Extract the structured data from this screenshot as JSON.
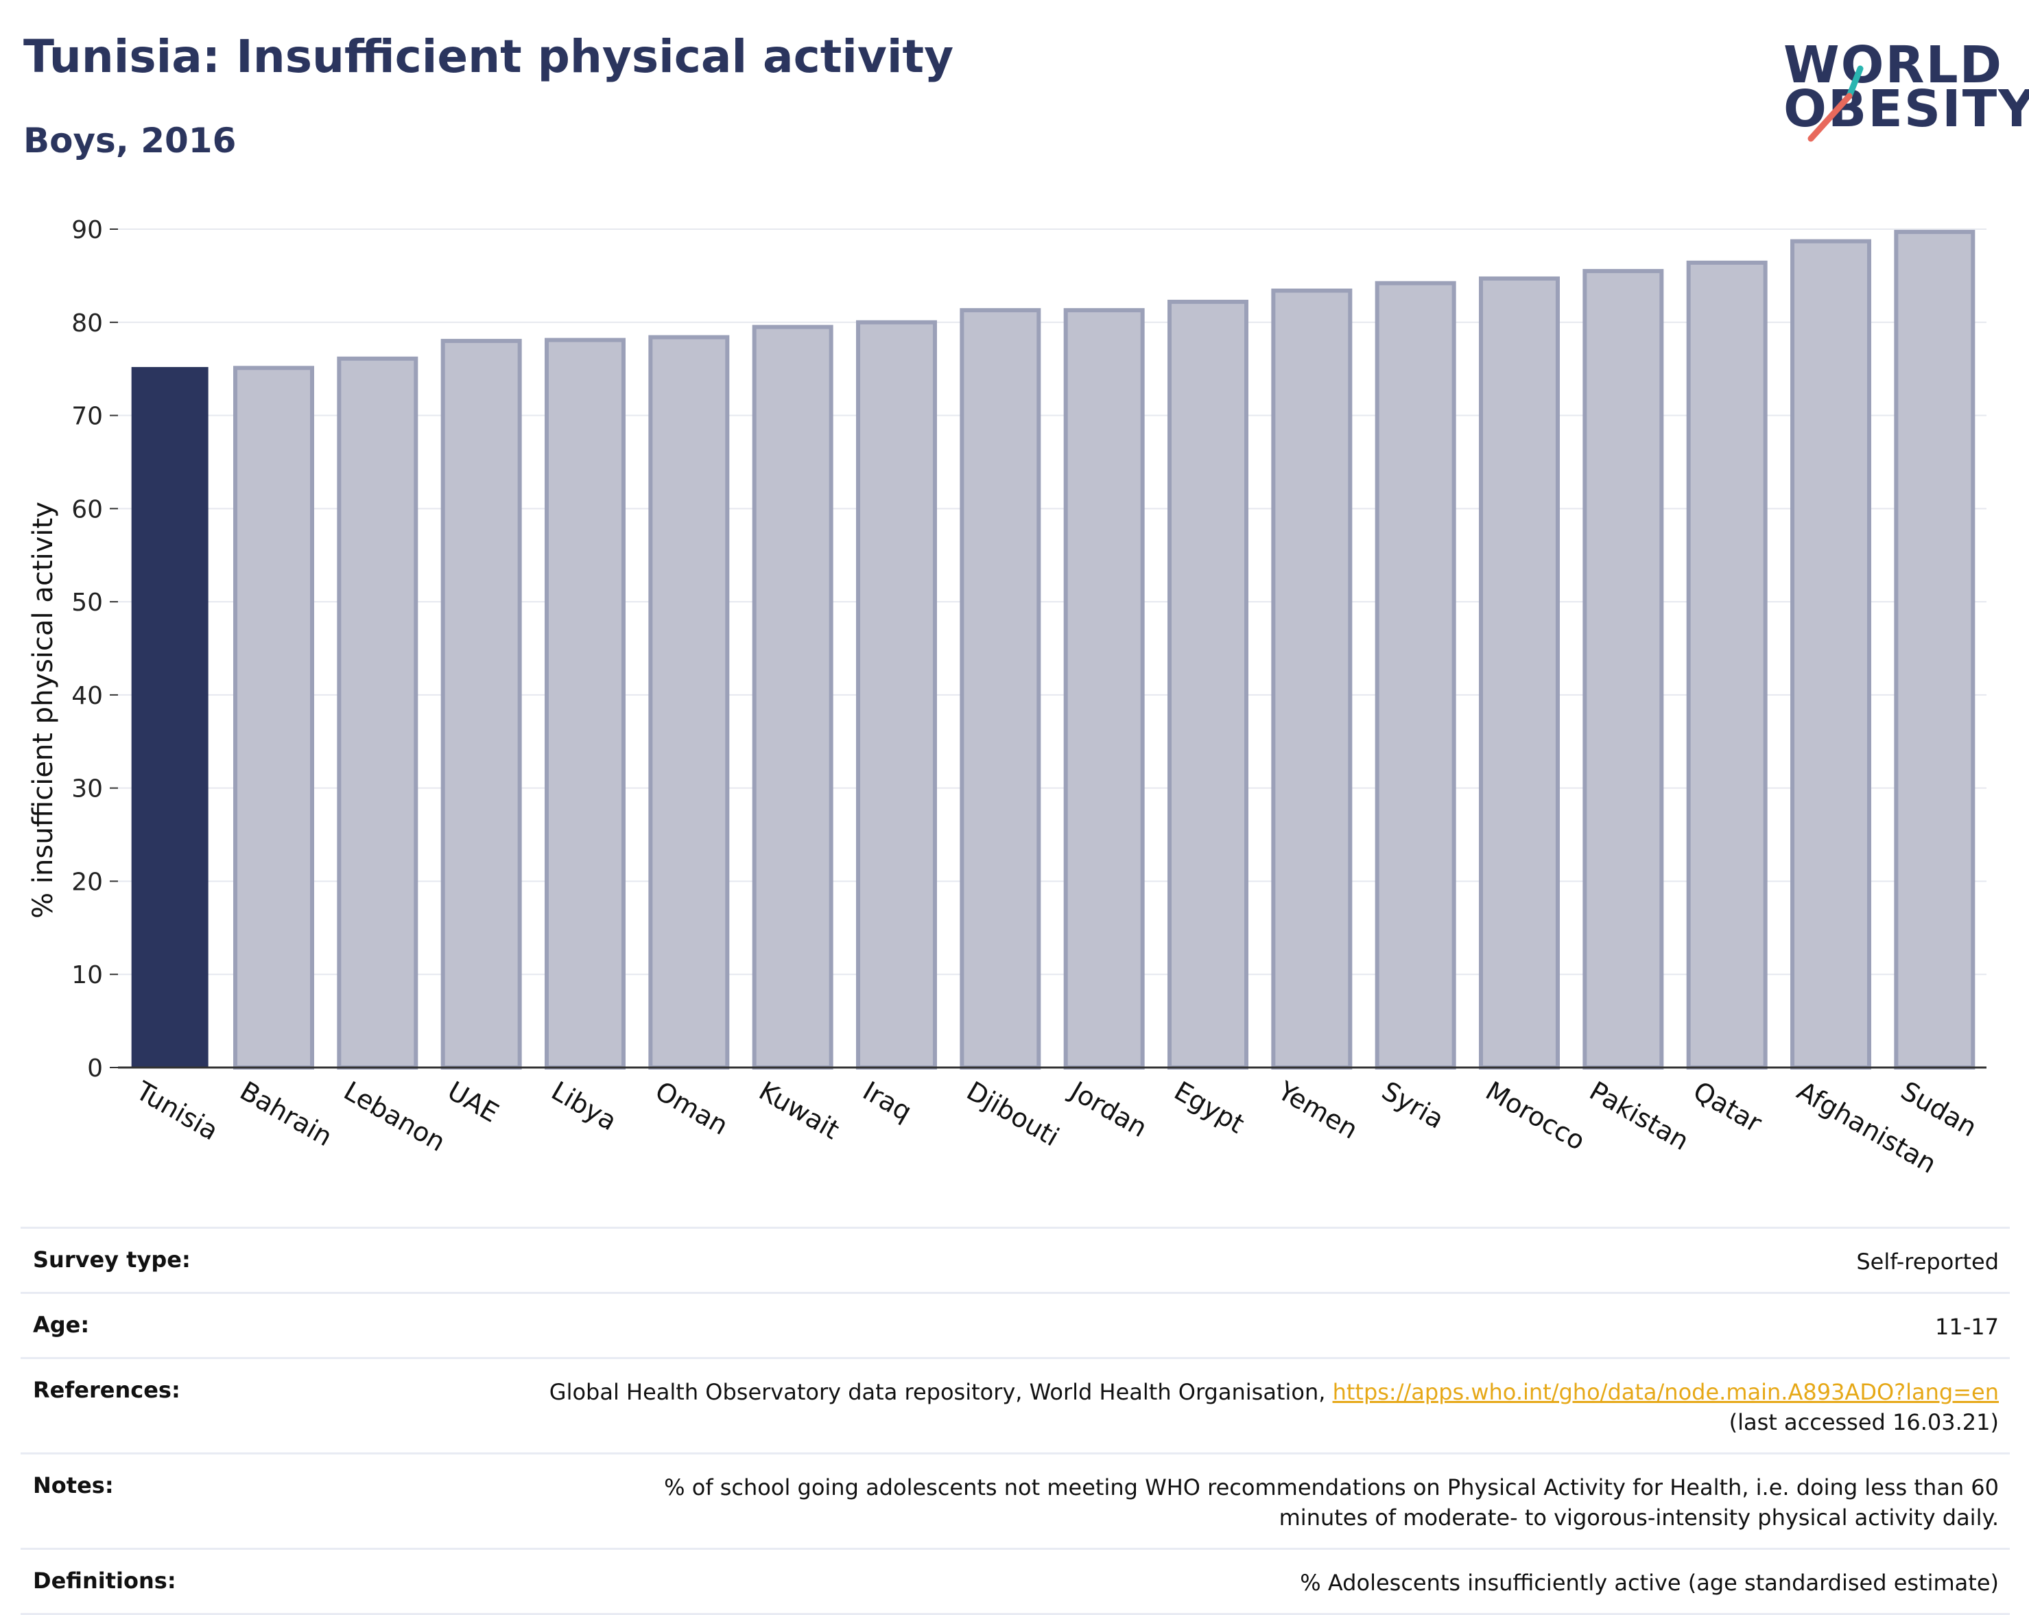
{
  "header": {
    "title": "Tunisia: Insufficient physical activity",
    "subtitle": "Boys, 2016"
  },
  "logo": {
    "line1": "WORLD",
    "line2": "OBESITY"
  },
  "colors": {
    "highlight_bar": "#2b355e",
    "other_bar_fill": "#bfc1cf",
    "other_bar_stroke": "#9ba0b8",
    "logo_slash_teal": "#2ab5b0",
    "logo_slash_coral": "#e8695c",
    "link": "#e6a817"
  },
  "chart_data": {
    "type": "bar",
    "title": "",
    "xlabel": "",
    "ylabel": "% insufficient physical activity",
    "ylim": [
      0,
      90
    ],
    "yticks": [
      0,
      10,
      20,
      30,
      40,
      50,
      60,
      70,
      80,
      90
    ],
    "grid": true,
    "highlight": "Tunisia",
    "categories": [
      "Tunisia",
      "Bahrain",
      "Lebanon",
      "UAE",
      "Libya",
      "Oman",
      "Kuwait",
      "Iraq",
      "Djibouti",
      "Jordan",
      "Egypt",
      "Yemen",
      "Syria",
      "Morocco",
      "Pakistan",
      "Qatar",
      "Afghanistan",
      "Sudan"
    ],
    "values": [
      75.2,
      75.1,
      76.1,
      78.0,
      78.1,
      78.4,
      79.5,
      80.0,
      81.3,
      81.3,
      82.2,
      83.4,
      84.2,
      84.7,
      85.5,
      86.4,
      88.7,
      89.7
    ]
  },
  "info_table": [
    {
      "key": "Survey type:",
      "value": "Self-reported"
    },
    {
      "key": "Age:",
      "value": "11-17"
    },
    {
      "key": "References:",
      "value_prefix": "Global Health Observatory data repository, World Health Organisation, ",
      "link": "https://apps.who.int/gho/data/node.main.A893ADO?lang=en",
      "value_suffix": "(last accessed 16.03.21)"
    },
    {
      "key": "Notes:",
      "value": "% of school going adolescents not meeting WHO recommendations on Physical Activity for Health, i.e. doing less than 60 minutes of moderate- to vigorous-intensity physical activity daily."
    },
    {
      "key": "Definitions:",
      "value": "% Adolescents insufficiently active (age standardised estimate)"
    }
  ]
}
